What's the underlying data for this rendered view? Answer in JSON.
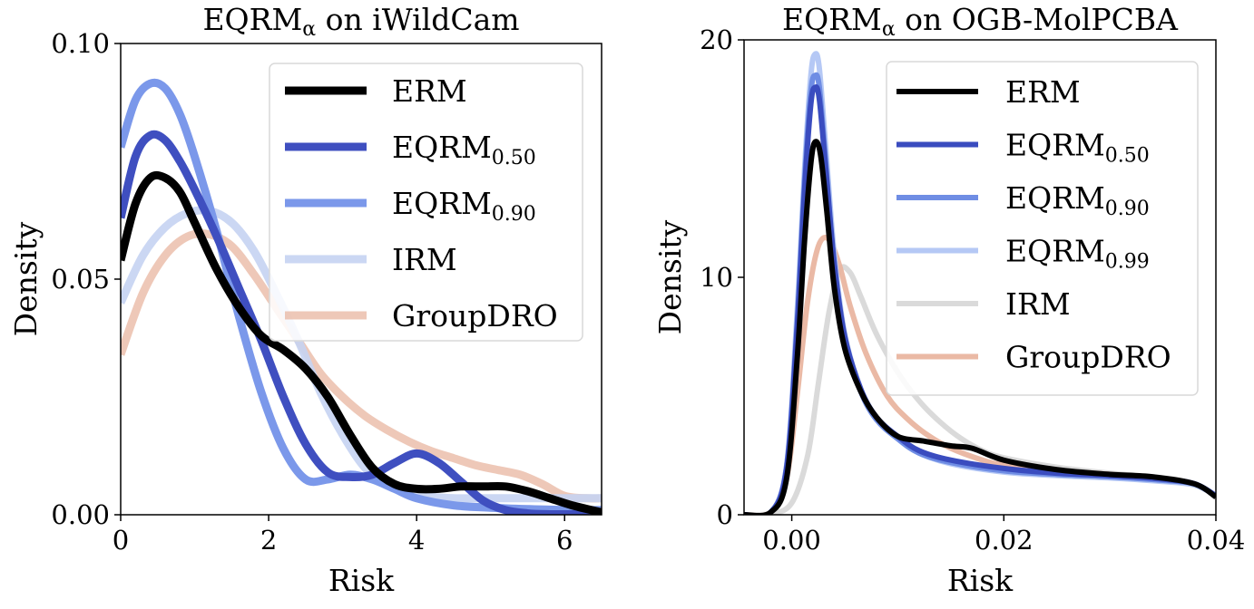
{
  "chart_data": [
    {
      "type": "line",
      "title": "EQRM",
      "title_sub": "α",
      "title_rest": " on iWildCam",
      "xlabel": "Risk",
      "ylabel": "Density",
      "xlim": [
        0,
        6.5
      ],
      "ylim": [
        0,
        0.1
      ],
      "xticks": [
        0,
        2,
        4,
        6
      ],
      "xtick_labels": [
        "0",
        "2",
        "4",
        "6"
      ],
      "yticks": [
        0,
        0.05,
        0.1
      ],
      "ytick_labels": [
        "0.00",
        "0.05",
        "0.10"
      ],
      "legend_position": "top-right",
      "series": [
        {
          "name": "GroupDRO",
          "sub": "",
          "color": "#e8b6a0",
          "width": 9,
          "opacity": 0.75,
          "x": [
            0,
            0.3,
            0.6,
            0.9,
            1.2,
            1.5,
            1.8,
            2.1,
            2.4,
            2.7,
            3.0,
            3.3,
            3.6,
            3.9,
            4.2,
            4.5,
            4.8,
            5.1,
            5.4,
            5.7,
            6.0,
            6.3,
            6.5
          ],
          "y": [
            0.034,
            0.047,
            0.055,
            0.059,
            0.0595,
            0.057,
            0.051,
            0.044,
            0.037,
            0.03,
            0.025,
            0.021,
            0.018,
            0.0155,
            0.0135,
            0.012,
            0.0105,
            0.0095,
            0.0085,
            0.0065,
            0.004,
            0.0035,
            0.0035
          ]
        },
        {
          "name": "IRM",
          "sub": "",
          "color": "#c5d3f2",
          "width": 9,
          "opacity": 0.9,
          "x": [
            0,
            0.3,
            0.6,
            0.9,
            1.2,
            1.5,
            1.8,
            2.1,
            2.4,
            2.7,
            3.0,
            3.3,
            3.6,
            3.9,
            4.2,
            4.5,
            4.8,
            5.1,
            5.4,
            5.7,
            6.0,
            6.3,
            6.5
          ],
          "y": [
            0.045,
            0.055,
            0.061,
            0.064,
            0.0645,
            0.062,
            0.056,
            0.047,
            0.037,
            0.026,
            0.017,
            0.01,
            0.0065,
            0.0045,
            0.0038,
            0.0035,
            0.0035,
            0.0035,
            0.0035,
            0.0035,
            0.0035,
            0.0035,
            0.0035
          ]
        },
        {
          "name": "EQRM",
          "sub": "0.90",
          "color": "#7b98ea",
          "width": 9,
          "opacity": 1,
          "x": [
            0,
            0.2,
            0.4,
            0.6,
            0.8,
            1.0,
            1.3,
            1.6,
            1.9,
            2.2,
            2.5,
            2.8,
            3.1,
            3.4,
            3.7,
            4.0,
            4.5,
            5.0,
            5.5,
            6.0,
            6.5
          ],
          "y": [
            0.078,
            0.088,
            0.0915,
            0.0905,
            0.085,
            0.076,
            0.06,
            0.042,
            0.026,
            0.014,
            0.0075,
            0.0075,
            0.0085,
            0.0075,
            0.0055,
            0.0035,
            0.002,
            0.0015,
            0.0012,
            0.001,
            0.001
          ]
        },
        {
          "name": "EQRM",
          "sub": "0.50",
          "color": "#3f4fc0",
          "width": 9,
          "opacity": 1,
          "x": [
            0,
            0.2,
            0.4,
            0.6,
            0.8,
            1.0,
            1.3,
            1.6,
            1.9,
            2.2,
            2.5,
            2.8,
            3.1,
            3.4,
            3.7,
            4.0,
            4.3,
            4.6,
            4.9,
            5.2,
            5.5,
            5.8,
            6.1,
            6.5
          ],
          "y": [
            0.063,
            0.076,
            0.0805,
            0.0795,
            0.075,
            0.069,
            0.059,
            0.048,
            0.037,
            0.025,
            0.015,
            0.009,
            0.008,
            0.0085,
            0.011,
            0.013,
            0.011,
            0.007,
            0.003,
            0.001,
            0.0003,
            0.0001,
            0.0001,
            0.0001
          ]
        },
        {
          "name": "ERM",
          "sub": "",
          "color": "#000000",
          "width": 9,
          "opacity": 1,
          "x": [
            0,
            0.2,
            0.4,
            0.6,
            0.8,
            1.0,
            1.3,
            1.6,
            1.9,
            2.2,
            2.5,
            2.8,
            3.1,
            3.4,
            3.7,
            4.0,
            4.3,
            4.6,
            4.9,
            5.2,
            5.5,
            5.8,
            6.1,
            6.5
          ],
          "y": [
            0.054,
            0.066,
            0.0715,
            0.0715,
            0.0685,
            0.062,
            0.052,
            0.044,
            0.038,
            0.035,
            0.031,
            0.025,
            0.017,
            0.01,
            0.0065,
            0.0055,
            0.0055,
            0.006,
            0.006,
            0.006,
            0.005,
            0.0035,
            0.002,
            0.0005
          ]
        }
      ],
      "legend": [
        {
          "name": "ERM",
          "sub": "",
          "color": "#000000",
          "opacity": 1
        },
        {
          "name": "EQRM",
          "sub": "0.50",
          "color": "#3f4fc0",
          "opacity": 1
        },
        {
          "name": "EQRM",
          "sub": "0.90",
          "color": "#7b98ea",
          "opacity": 1
        },
        {
          "name": "IRM",
          "sub": "",
          "color": "#c5d3f2",
          "opacity": 0.9
        },
        {
          "name": "GroupDRO",
          "sub": "",
          "color": "#e8b6a0",
          "opacity": 0.75
        }
      ]
    },
    {
      "type": "line",
      "title": "EQRM",
      "title_sub": "α",
      "title_rest": " on OGB-MolPCBA",
      "xlabel": "Risk",
      "ylabel": "Density",
      "xlim": [
        -0.0045,
        0.04
      ],
      "ylim": [
        0,
        20
      ],
      "xticks": [
        0,
        0.02,
        0.04
      ],
      "xtick_labels": [
        "0.00",
        "0.02",
        "0.04"
      ],
      "yticks": [
        0,
        10,
        20
      ],
      "ytick_labels": [
        "0",
        "10",
        "20"
      ],
      "legend_position": "top-right",
      "series": [
        {
          "name": "IRM",
          "sub": "",
          "color": "#d6d6d6",
          "width": 6,
          "opacity": 0.9,
          "x": [
            -0.0045,
            -0.002,
            0.0,
            0.0015,
            0.0025,
            0.0035,
            0.0045,
            0.0055,
            0.0065,
            0.008,
            0.01,
            0.012,
            0.014,
            0.016,
            0.018,
            0.02,
            0.025,
            0.03,
            0.035,
            0.038,
            0.04
          ],
          "y": [
            0,
            0.05,
            0.5,
            2.5,
            5.5,
            8.5,
            10.3,
            10.2,
            9.2,
            7.6,
            6.0,
            4.8,
            3.9,
            3.2,
            2.7,
            2.4,
            2.0,
            1.75,
            1.55,
            1.3,
            0.8
          ]
        },
        {
          "name": "GroupDRO",
          "sub": "",
          "color": "#e9b5a0",
          "width": 6,
          "opacity": 0.95,
          "x": [
            -0.0045,
            -0.002,
            -0.0005,
            0.0005,
            0.0015,
            0.0025,
            0.0035,
            0.0045,
            0.0055,
            0.007,
            0.009,
            0.011,
            0.013,
            0.015,
            0.018,
            0.02,
            0.025,
            0.03,
            0.035,
            0.038,
            0.04
          ],
          "y": [
            0,
            0.1,
            1.5,
            5.0,
            9.0,
            11.3,
            11.6,
            10.5,
            8.8,
            6.8,
            5.0,
            4.0,
            3.3,
            2.8,
            2.3,
            2.1,
            1.85,
            1.7,
            1.5,
            1.3,
            0.8
          ]
        },
        {
          "name": "EQRM",
          "sub": "0.99",
          "color": "#b5c8f5",
          "width": 6,
          "opacity": 1,
          "x": [
            -0.0045,
            -0.002,
            -0.0005,
            0.0005,
            0.0012,
            0.0018,
            0.0022,
            0.0026,
            0.0032,
            0.004,
            0.005,
            0.0065,
            0.008,
            0.01,
            0.012,
            0.015,
            0.02,
            0.025,
            0.03,
            0.035,
            0.038,
            0.04
          ],
          "y": [
            0,
            0.1,
            2.0,
            8.5,
            14.5,
            18.5,
            19.4,
            18.8,
            15.5,
            11.0,
            7.6,
            5.3,
            4.1,
            3.2,
            2.6,
            2.15,
            1.8,
            1.65,
            1.55,
            1.4,
            1.25,
            0.8
          ]
        },
        {
          "name": "EQRM",
          "sub": "0.90",
          "color": "#6f8de4",
          "width": 6,
          "opacity": 1,
          "x": [
            -0.0045,
            -0.002,
            -0.0005,
            0.0005,
            0.0012,
            0.0018,
            0.0022,
            0.0026,
            0.0032,
            0.004,
            0.005,
            0.0065,
            0.008,
            0.01,
            0.012,
            0.015,
            0.02,
            0.025,
            0.03,
            0.035,
            0.038,
            0.04
          ],
          "y": [
            0,
            0.1,
            2.0,
            8.0,
            14.0,
            17.8,
            18.5,
            18.0,
            14.8,
            10.6,
            7.4,
            5.2,
            4.0,
            3.2,
            2.6,
            2.2,
            1.85,
            1.7,
            1.6,
            1.45,
            1.3,
            0.8
          ]
        },
        {
          "name": "EQRM",
          "sub": "0.50",
          "color": "#3a4cbf",
          "width": 6,
          "opacity": 1,
          "x": [
            -0.0045,
            -0.002,
            -0.0005,
            0.0005,
            0.0012,
            0.0018,
            0.0022,
            0.0026,
            0.0032,
            0.004,
            0.005,
            0.0065,
            0.008,
            0.01,
            0.012,
            0.015,
            0.02,
            0.025,
            0.03,
            0.035,
            0.038,
            0.04
          ],
          "y": [
            0,
            0.1,
            1.9,
            7.8,
            13.6,
            17.3,
            18.0,
            17.5,
            14.6,
            10.6,
            7.5,
            5.3,
            4.1,
            3.3,
            2.7,
            2.3,
            1.95,
            1.75,
            1.65,
            1.5,
            1.3,
            0.8
          ]
        },
        {
          "name": "ERM",
          "sub": "",
          "color": "#000000",
          "width": 6,
          "opacity": 1,
          "x": [
            -0.0045,
            -0.002,
            -0.0005,
            0.0005,
            0.0012,
            0.0018,
            0.0022,
            0.0027,
            0.0033,
            0.004,
            0.005,
            0.0065,
            0.008,
            0.01,
            0.0125,
            0.015,
            0.017,
            0.02,
            0.025,
            0.03,
            0.034,
            0.038,
            0.04
          ],
          "y": [
            0,
            0.1,
            1.5,
            6.5,
            11.5,
            14.8,
            15.7,
            15.2,
            12.8,
            9.6,
            7.0,
            5.2,
            4.1,
            3.3,
            3.1,
            2.9,
            2.8,
            2.3,
            1.9,
            1.7,
            1.6,
            1.3,
            0.75
          ]
        }
      ],
      "legend": [
        {
          "name": "ERM",
          "sub": "",
          "color": "#000000",
          "opacity": 1
        },
        {
          "name": "EQRM",
          "sub": "0.50",
          "color": "#3a4cbf",
          "opacity": 1
        },
        {
          "name": "EQRM",
          "sub": "0.90",
          "color": "#6f8de4",
          "opacity": 1
        },
        {
          "name": "EQRM",
          "sub": "0.99",
          "color": "#b5c8f5",
          "opacity": 1
        },
        {
          "name": "IRM",
          "sub": "",
          "color": "#d6d6d6",
          "opacity": 0.9
        },
        {
          "name": "GroupDRO",
          "sub": "",
          "color": "#e9b5a0",
          "opacity": 0.95
        }
      ]
    }
  ]
}
